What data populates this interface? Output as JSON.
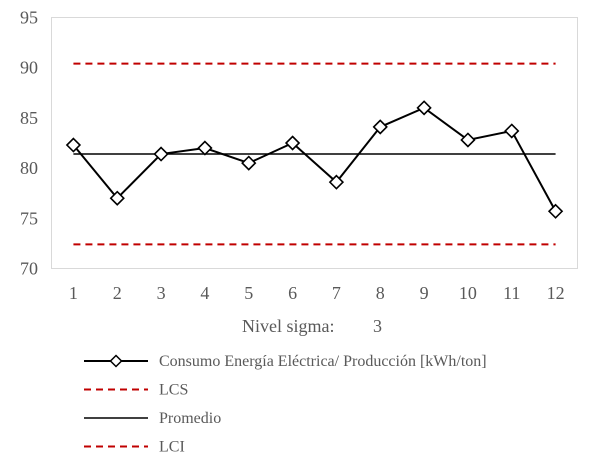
{
  "chart_data": {
    "type": "line",
    "title": "",
    "xlabel": "",
    "ylabel": "",
    "ylim": [
      70,
      95
    ],
    "y_ticks": [
      70,
      75,
      80,
      85,
      90,
      95
    ],
    "categories": [
      "1",
      "2",
      "3",
      "4",
      "5",
      "6",
      "7",
      "8",
      "9",
      "10",
      "11",
      "12"
    ],
    "grid": false,
    "legend_placement": "bottom",
    "sigma_label": "Nivel sigma:",
    "sigma_value": "3",
    "series": [
      {
        "name": "Consumo Energía Eléctrica/ Producción [kWh/ton]",
        "values": [
          82.3,
          77.0,
          81.4,
          82.0,
          80.5,
          82.5,
          78.6,
          84.1,
          86.0,
          82.8,
          83.7,
          75.7
        ],
        "color": "#000000",
        "style": "solid",
        "marker": "diamond"
      },
      {
        "name": "LCS",
        "values": [
          90.4,
          90.4,
          90.4,
          90.4,
          90.4,
          90.4,
          90.4,
          90.4,
          90.4,
          90.4,
          90.4,
          90.4
        ],
        "color": "#c00000",
        "style": "dashed",
        "marker": "none"
      },
      {
        "name": "Promedio",
        "values": [
          81.4,
          81.4,
          81.4,
          81.4,
          81.4,
          81.4,
          81.4,
          81.4,
          81.4,
          81.4,
          81.4,
          81.4
        ],
        "color": "#000000",
        "style": "solid",
        "marker": "none"
      },
      {
        "name": "LCI",
        "values": [
          72.4,
          72.4,
          72.4,
          72.4,
          72.4,
          72.4,
          72.4,
          72.4,
          72.4,
          72.4,
          72.4,
          72.4
        ],
        "color": "#c00000",
        "style": "dashed",
        "marker": "none"
      }
    ]
  }
}
